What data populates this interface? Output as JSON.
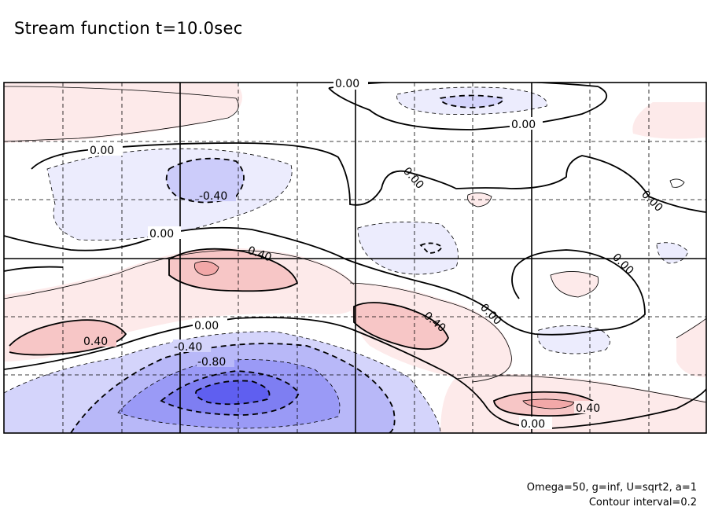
{
  "chart_data": {
    "type": "contour",
    "title": "Stream function t=10.0sec",
    "notes": [
      "Omega=50, g=inf, U=sqrt2, a=1",
      "Contour interval=0.2"
    ],
    "contour_interval": 0.2,
    "grid": true,
    "colors": {
      "positive": "#f0a8a8",
      "negative": "#6c6cf0",
      "zero_line": "#000000"
    },
    "contour_labels": [
      {
        "text": "0.00"
      },
      {
        "text": "0.00"
      },
      {
        "text": "0.00"
      },
      {
        "text": "0.00"
      },
      {
        "text": "0.00"
      },
      {
        "text": "0.00"
      },
      {
        "text": "0.00"
      },
      {
        "text": "0.00"
      },
      {
        "text": "0.00"
      },
      {
        "text": "0.00"
      },
      {
        "text": "-0.40"
      },
      {
        "text": "0.40"
      },
      {
        "text": "0.40"
      },
      {
        "text": "-0.40"
      },
      {
        "text": "-0.80"
      },
      {
        "text": "0.40"
      },
      {
        "text": "0.40"
      }
    ]
  },
  "title": "Stream function t=10.0sec",
  "footnote": {
    "line1": "Omega=50, g=inf, U=sqrt2, a=1",
    "line2": "Contour interval=0.2"
  }
}
